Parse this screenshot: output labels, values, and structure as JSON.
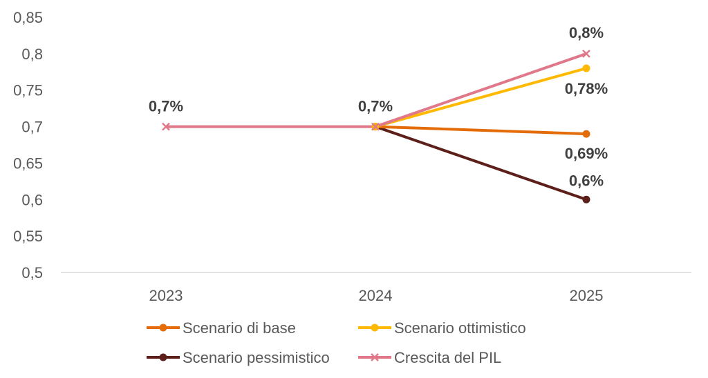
{
  "chart_data": {
    "type": "line",
    "categories": [
      "2023",
      "2024",
      "2025"
    ],
    "ylim": [
      0.5,
      0.85
    ],
    "y_ticks": [
      "0,5",
      "0,55",
      "0,6",
      "0,65",
      "0,7",
      "0,75",
      "0,8",
      "0,85"
    ],
    "grid": false,
    "legend_position": "bottom",
    "series": [
      {
        "name": "Scenario di base",
        "values": [
          null,
          0.7,
          0.69
        ],
        "color": "#E36C09",
        "marker": "circle"
      },
      {
        "name": "Scenario ottimistico",
        "values": [
          null,
          0.7,
          0.78
        ],
        "color": "#FFB900",
        "marker": "circle"
      },
      {
        "name": "Scenario pessimistico",
        "values": [
          null,
          0.7,
          0.6
        ],
        "color": "#5C1F1A",
        "marker": "circle"
      },
      {
        "name": "Crescita del PIL",
        "values": [
          0.7,
          0.7,
          0.8
        ],
        "color": "#E0788A",
        "marker": "x"
      }
    ],
    "data_labels": [
      {
        "text": "0,7%",
        "category": "2023",
        "value": 0.7
      },
      {
        "text": "0,7%",
        "category": "2024",
        "value": 0.7
      },
      {
        "text": "0,8%",
        "category": "2025",
        "value": 0.8
      },
      {
        "text": "0,78%",
        "category": "2025",
        "value": 0.78
      },
      {
        "text": "0,69%",
        "category": "2025",
        "value": 0.69
      },
      {
        "text": "0,6%",
        "category": "2025",
        "value": 0.6
      }
    ]
  }
}
